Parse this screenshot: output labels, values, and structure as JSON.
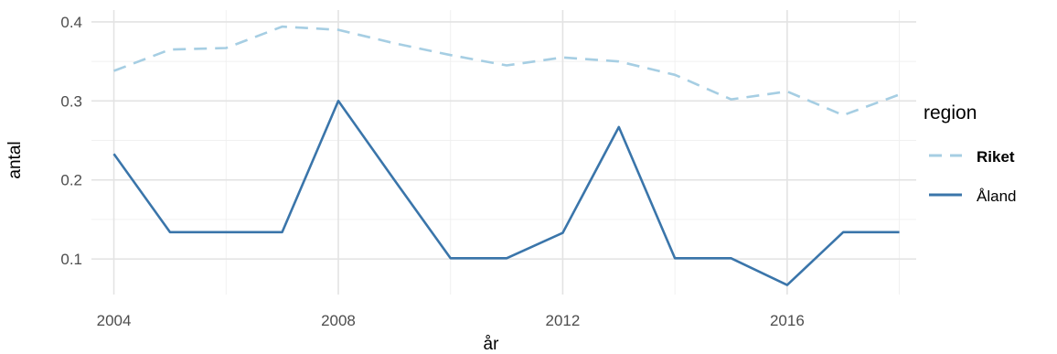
{
  "chart_data": {
    "type": "line",
    "xlabel": "år",
    "ylabel": "antal",
    "xlim": [
      2003.6,
      2018.3
    ],
    "ylim": [
      0.055,
      0.415
    ],
    "xticks": [
      2004,
      2008,
      2012,
      2016
    ],
    "xminor": [
      2006,
      2010,
      2014,
      2018
    ],
    "yticks": [
      0.1,
      0.2,
      0.3,
      0.4
    ],
    "yminor": [
      0.15,
      0.25,
      0.35
    ],
    "grid": true,
    "legend": {
      "title": "region",
      "placement": "right"
    },
    "x": [
      2004,
      2005,
      2006,
      2007,
      2008,
      2009,
      2010,
      2011,
      2012,
      2013,
      2014,
      2015,
      2016,
      2017,
      2018
    ],
    "series": [
      {
        "name": "Riket",
        "color": "#a6cee3",
        "dash": "dashed",
        "values": [
          0.338,
          0.365,
          0.367,
          0.394,
          0.39,
          0.373,
          0.358,
          0.345,
          0.355,
          0.35,
          0.333,
          0.302,
          0.312,
          0.282,
          0.308
        ]
      },
      {
        "name": "Åland",
        "color": "#3a75aa",
        "dash": "solid",
        "values": [
          0.233,
          0.134,
          0.134,
          0.134,
          0.3,
          0.2,
          0.101,
          0.101,
          0.133,
          0.267,
          0.101,
          0.101,
          0.067,
          0.134,
          0.134
        ]
      }
    ]
  }
}
